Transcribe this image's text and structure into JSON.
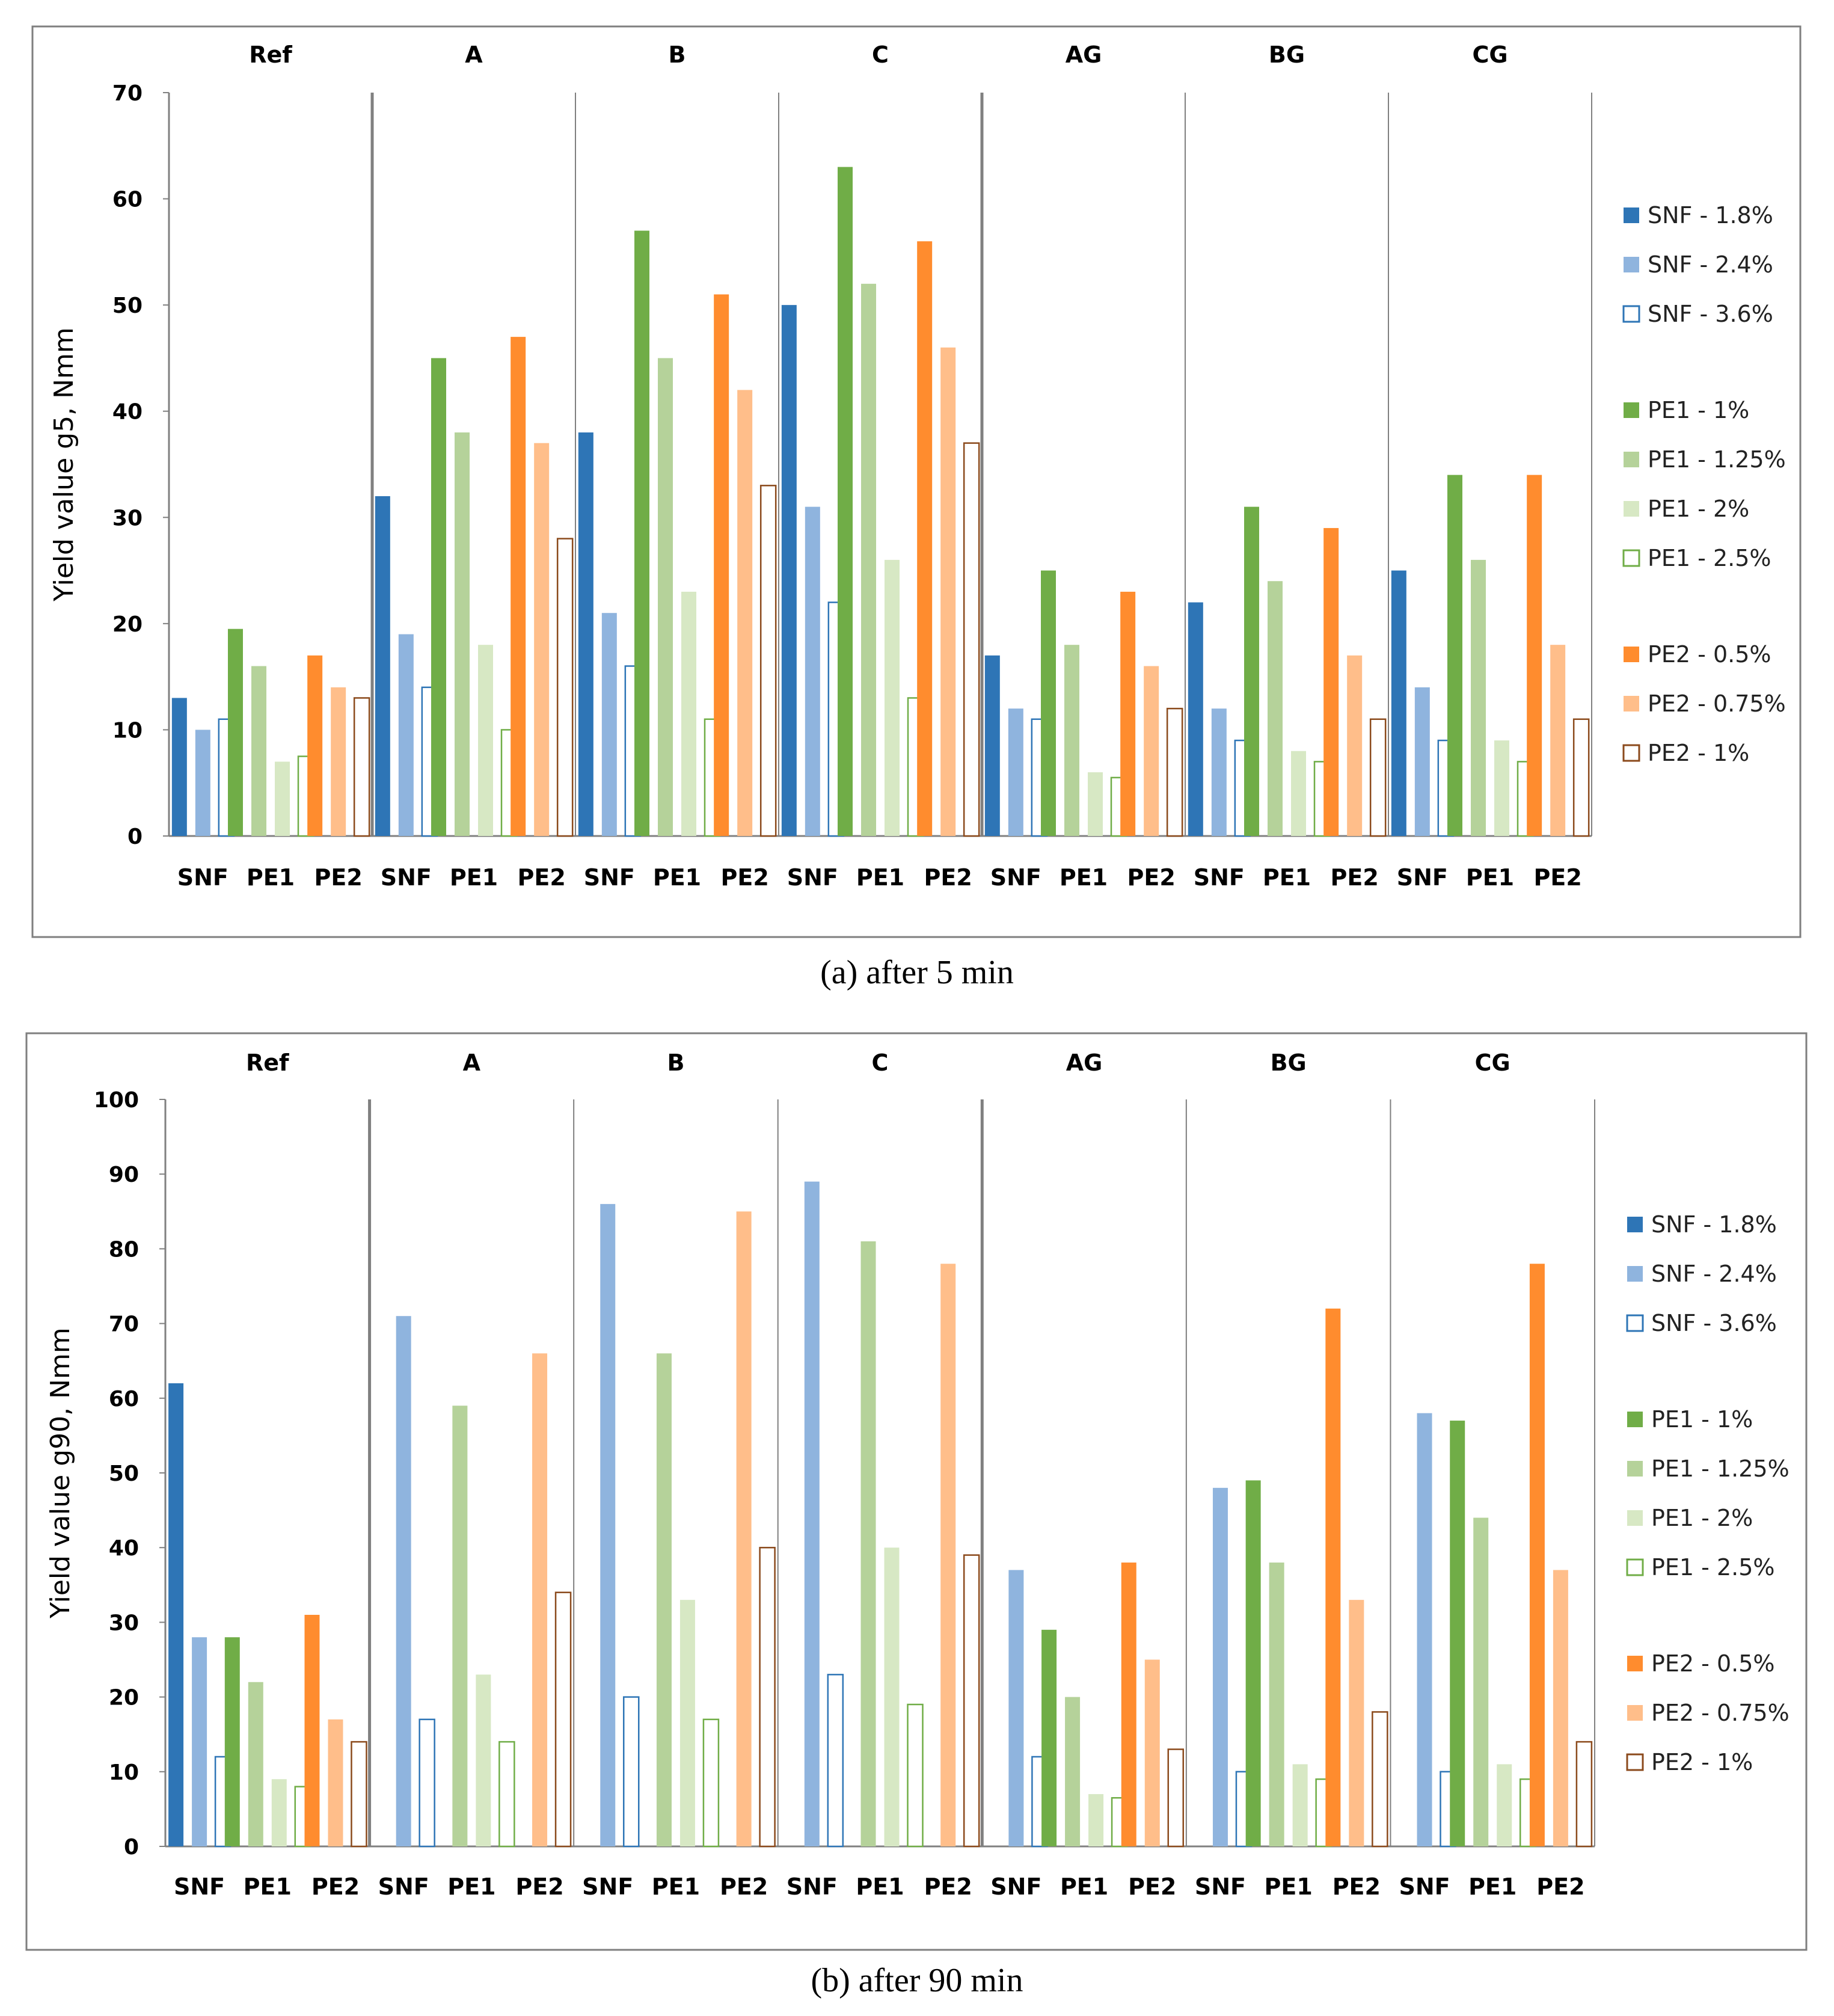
{
  "colors": {
    "snf_1_8": "#2E75B6",
    "snf_2_4": "#8FB4DE",
    "pe1_1": "#70AD47",
    "pe1_1_25": "#B5D29A",
    "pe1_2": "#D7E8C4",
    "pe1_2_5": "#70AD47",
    "pe2_0_5": "#FF8C2E",
    "pe2_0_75": "#FFBE8A",
    "pe2_1": "#8B4A1C",
    "axis": "#808080",
    "frame": "#7F7F7F"
  },
  "legend": [
    {
      "key": "snf18",
      "label": "SNF - 1.8%",
      "style": "solid",
      "color": "#2E75B6"
    },
    {
      "key": "snf24",
      "label": "SNF - 2.4%",
      "style": "solid",
      "color": "#8FB4DE"
    },
    {
      "key": "snf36",
      "label": "SNF - 3.6%",
      "style": "outline",
      "color": "#2E75B6"
    },
    {
      "key": "pe1_1",
      "label": "PE1 - 1%",
      "style": "solid",
      "color": "#70AD47"
    },
    {
      "key": "pe1_125",
      "label": "PE1 - 1.25%",
      "style": "solid",
      "color": "#B5D29A"
    },
    {
      "key": "pe1_2",
      "label": "PE1 - 2%",
      "style": "solid",
      "color": "#D7E8C4"
    },
    {
      "key": "pe1_25",
      "label": "PE1 - 2.5%",
      "style": "outline",
      "color": "#70AD47"
    },
    {
      "key": "pe2_05",
      "label": "PE2 - 0.5%",
      "style": "solid",
      "color": "#FF8C2E"
    },
    {
      "key": "pe2_075",
      "label": "PE2 - 0.75%",
      "style": "solid",
      "color": "#FFBE8A"
    },
    {
      "key": "pe2_1",
      "label": "PE2 - 1%",
      "style": "outline",
      "color": "#8B4A1C"
    }
  ],
  "chart_data": [
    {
      "type": "bar",
      "caption": "(a) after 5 min",
      "ylabel": "Yield value g5, Nmm",
      "ylim": [
        0,
        70
      ],
      "yticks": [
        0,
        10,
        20,
        30,
        40,
        50,
        60,
        70
      ],
      "groups": [
        "Ref",
        "A",
        "B",
        "C",
        "AG",
        "BG",
        "CG"
      ],
      "subcategories": [
        "SNF",
        "PE1",
        "PE2"
      ],
      "values": {
        "Ref": {
          "SNF": {
            "snf18": 13,
            "snf24": 10,
            "snf36": 11
          },
          "PE1": {
            "pe1_1": 19.5,
            "pe1_125": 16,
            "pe1_2": 7,
            "pe1_25": 7.5
          },
          "PE2": {
            "pe2_05": 17,
            "pe2_075": 14,
            "pe2_1": 13
          }
        },
        "A": {
          "SNF": {
            "snf18": 32,
            "snf24": 19,
            "snf36": 14
          },
          "PE1": {
            "pe1_1": 45,
            "pe1_125": 38,
            "pe1_2": 18,
            "pe1_25": 10
          },
          "PE2": {
            "pe2_05": 47,
            "pe2_075": 37,
            "pe2_1": 28
          }
        },
        "B": {
          "SNF": {
            "snf18": 38,
            "snf24": 21,
            "snf36": 16
          },
          "PE1": {
            "pe1_1": 57,
            "pe1_125": 45,
            "pe1_2": 23,
            "pe1_25": 11
          },
          "PE2": {
            "pe2_05": 51,
            "pe2_075": 42,
            "pe2_1": 33
          }
        },
        "C": {
          "SNF": {
            "snf18": 50,
            "snf24": 31,
            "snf36": 22
          },
          "PE1": {
            "pe1_1": 63,
            "pe1_125": 52,
            "pe1_2": 26,
            "pe1_25": 13
          },
          "PE2": {
            "pe2_05": 56,
            "pe2_075": 46,
            "pe2_1": 37
          }
        },
        "AG": {
          "SNF": {
            "snf18": 17,
            "snf24": 12,
            "snf36": 11
          },
          "PE1": {
            "pe1_1": 25,
            "pe1_125": 18,
            "pe1_2": 6,
            "pe1_25": 5.5
          },
          "PE2": {
            "pe2_05": 23,
            "pe2_075": 16,
            "pe2_1": 12
          }
        },
        "BG": {
          "SNF": {
            "snf18": 22,
            "snf24": 12,
            "snf36": 9
          },
          "PE1": {
            "pe1_1": 31,
            "pe1_125": 24,
            "pe1_2": 8,
            "pe1_25": 7
          },
          "PE2": {
            "pe2_05": 29,
            "pe2_075": 17,
            "pe2_1": 11
          }
        },
        "CG": {
          "SNF": {
            "snf18": 25,
            "snf24": 14,
            "snf36": 9
          },
          "PE1": {
            "pe1_1": 34,
            "pe1_125": 26,
            "pe1_2": 9,
            "pe1_25": 7
          },
          "PE2": {
            "pe2_05": 34,
            "pe2_075": 18,
            "pe2_1": 11
          }
        }
      }
    },
    {
      "type": "bar",
      "caption": "(b) after 90 min",
      "ylabel": "Yield value g90, Nmm",
      "ylim": [
        0,
        100
      ],
      "yticks": [
        0,
        10,
        20,
        30,
        40,
        50,
        60,
        70,
        80,
        90,
        100
      ],
      "groups": [
        "Ref",
        "A",
        "B",
        "C",
        "AG",
        "BG",
        "CG"
      ],
      "subcategories": [
        "SNF",
        "PE1",
        "PE2"
      ],
      "values": {
        "Ref": {
          "SNF": {
            "snf18": 62,
            "snf24": 28,
            "snf36": 12
          },
          "PE1": {
            "pe1_1": 28,
            "pe1_125": 22,
            "pe1_2": 9,
            "pe1_25": 8
          },
          "PE2": {
            "pe2_05": 31,
            "pe2_075": 17,
            "pe2_1": 14
          }
        },
        "A": {
          "SNF": {
            "snf24": 71,
            "snf36": 17
          },
          "PE1": {
            "pe1_125": 59,
            "pe1_2": 23,
            "pe1_25": 14
          },
          "PE2": {
            "pe2_075": 66,
            "pe2_1": 34
          }
        },
        "B": {
          "SNF": {
            "snf24": 86,
            "snf36": 20
          },
          "PE1": {
            "pe1_125": 66,
            "pe1_2": 33,
            "pe1_25": 17
          },
          "PE2": {
            "pe2_075": 85,
            "pe2_1": 40
          }
        },
        "C": {
          "SNF": {
            "snf24": 89,
            "snf36": 23
          },
          "PE1": {
            "pe1_125": 81,
            "pe1_2": 40,
            "pe1_25": 19
          },
          "PE2": {
            "pe2_075": 78,
            "pe2_1": 39
          }
        },
        "AG": {
          "SNF": {
            "snf24": 37,
            "snf36": 12
          },
          "PE1": {
            "pe1_1": 29,
            "pe1_125": 20,
            "pe1_2": 7,
            "pe1_25": 6.5
          },
          "PE2": {
            "pe2_05": 38,
            "pe2_075": 25,
            "pe2_1": 13
          }
        },
        "BG": {
          "SNF": {
            "snf24": 48,
            "snf36": 10
          },
          "PE1": {
            "pe1_1": 49,
            "pe1_125": 38,
            "pe1_2": 11,
            "pe1_25": 9
          },
          "PE2": {
            "pe2_05": 72,
            "pe2_075": 33,
            "pe2_1": 18
          }
        },
        "CG": {
          "SNF": {
            "snf24": 58,
            "snf36": 10
          },
          "PE1": {
            "pe1_1": 57,
            "pe1_125": 44,
            "pe1_2": 11,
            "pe1_25": 9
          },
          "PE2": {
            "pe2_05": 78,
            "pe2_075": 37,
            "pe2_1": 14
          }
        }
      }
    }
  ]
}
